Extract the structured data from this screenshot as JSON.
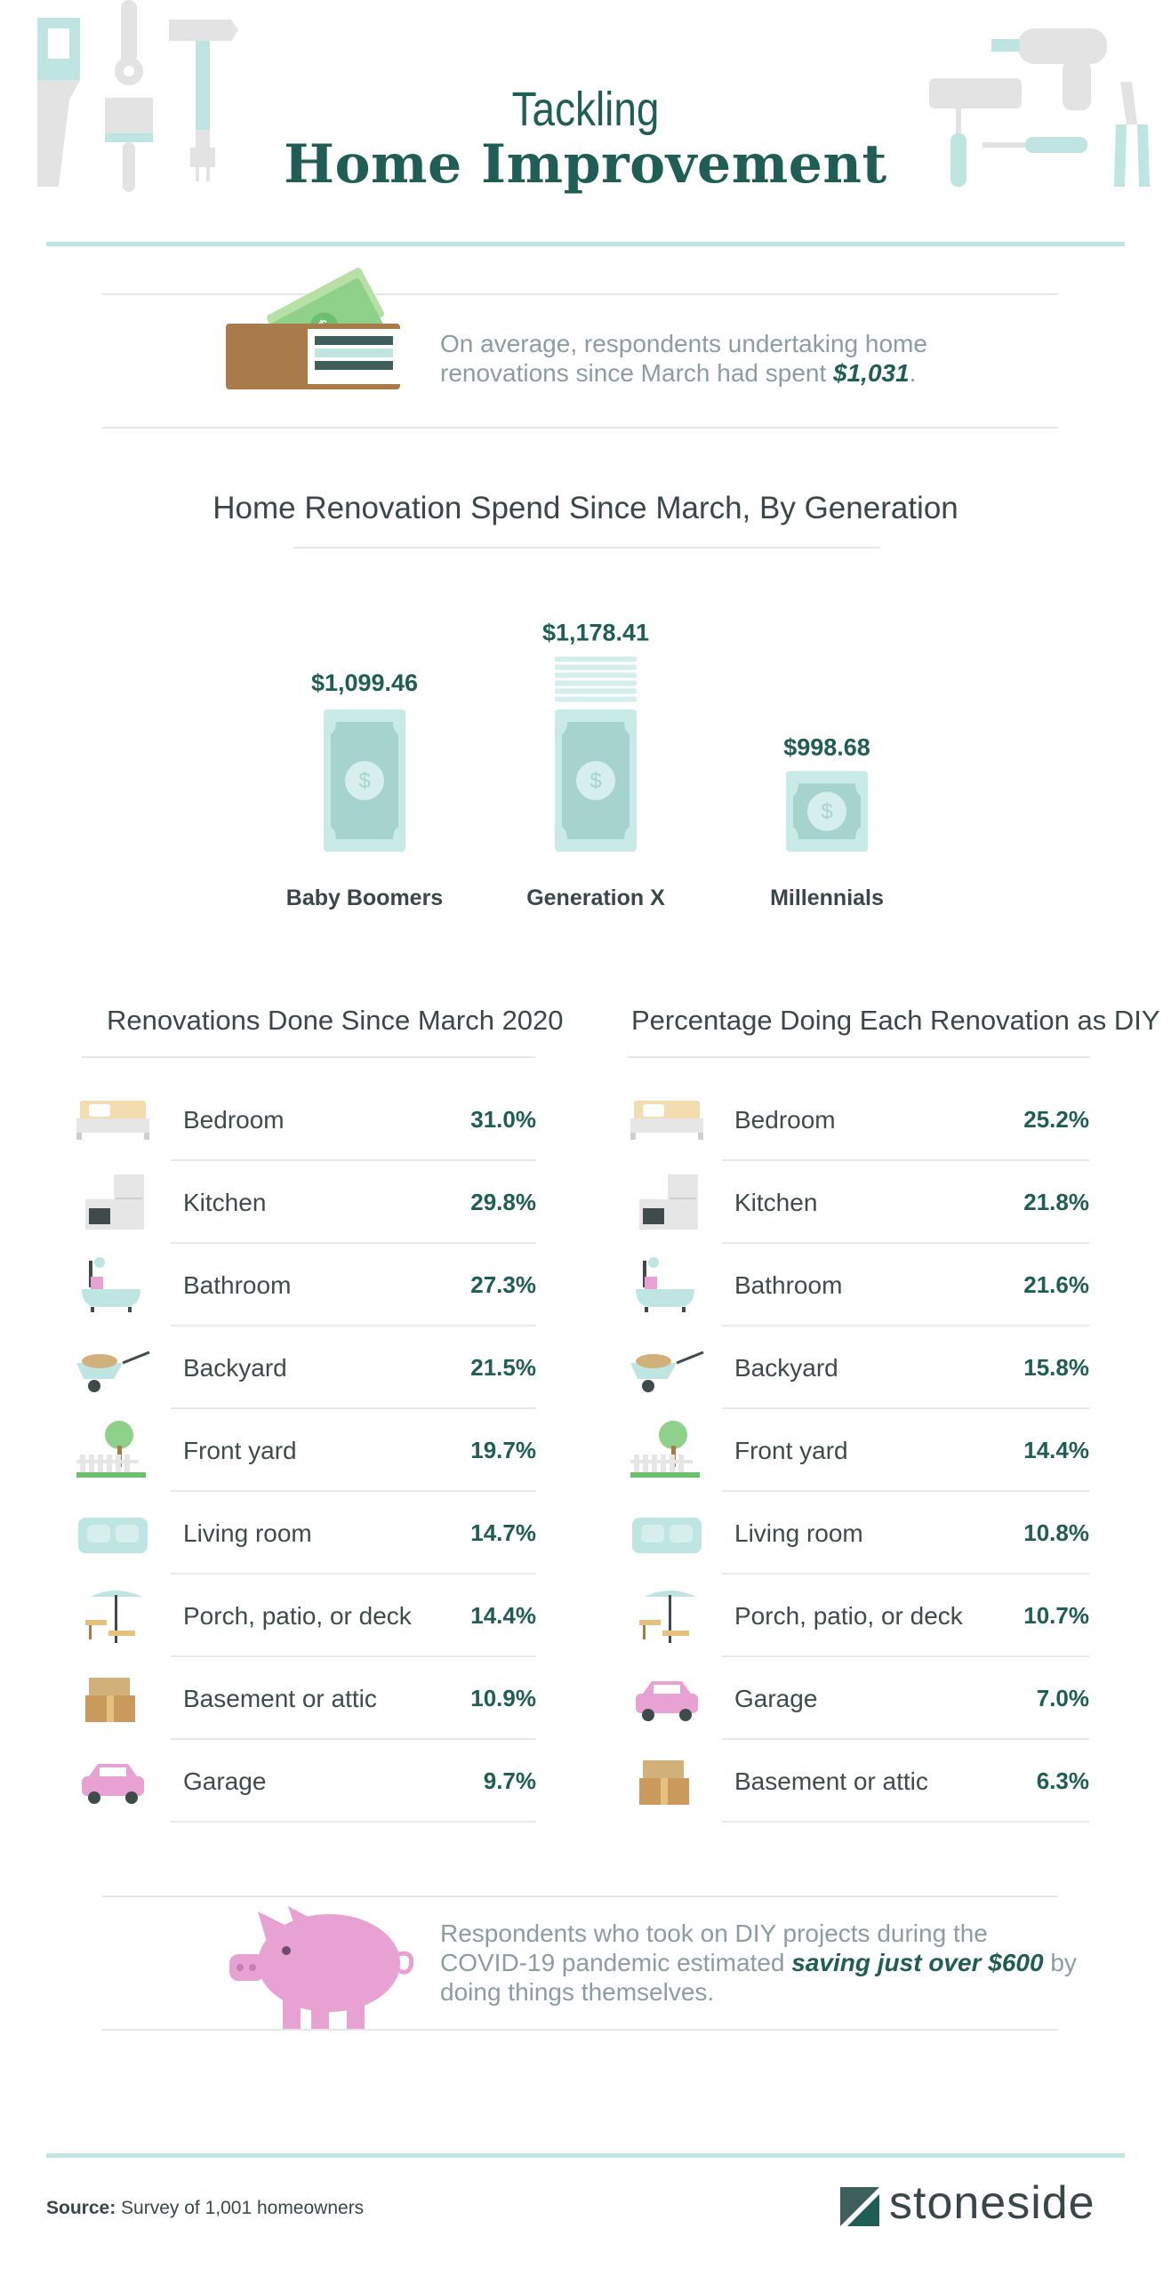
{
  "header": {
    "title_line1": "Tackling",
    "title_line2": "Home Improvement"
  },
  "spend_callout": {
    "text_before": "On average, respondents undertaking home renovations since March had spent ",
    "amount": "$1,031",
    "text_after": "."
  },
  "chart_data": [
    {
      "type": "bar",
      "title": "Home Renovation Spend Since March, By Generation",
      "categories": [
        "Baby Boomers",
        "Generation X",
        "Millennials"
      ],
      "values": [
        1099.46,
        1178.41,
        998.68
      ],
      "value_labels": [
        "$1,099.46",
        "$1,178.41",
        "$998.68"
      ]
    },
    {
      "type": "table",
      "title": "Renovations Done Since March 2020",
      "rows": [
        {
          "icon": "bed-icon",
          "label": "Bedroom",
          "value": "31.0%"
        },
        {
          "icon": "fridge-stove-icon",
          "label": "Kitchen",
          "value": "29.8%"
        },
        {
          "icon": "bathtub-icon",
          "label": "Bathroom",
          "value": "27.3%"
        },
        {
          "icon": "wheelbarrow-icon",
          "label": "Backyard",
          "value": "21.5%"
        },
        {
          "icon": "tree-fence-icon",
          "label": "Front yard",
          "value": "19.7%"
        },
        {
          "icon": "sofa-icon",
          "label": "Living room",
          "value": "14.7%"
        },
        {
          "icon": "patio-umbrella-icon",
          "label": "Porch, patio, or deck",
          "value": "14.4%"
        },
        {
          "icon": "boxes-icon",
          "label": "Basement or attic",
          "value": "10.9%"
        },
        {
          "icon": "car-icon",
          "label": "Garage",
          "value": "9.7%"
        }
      ]
    },
    {
      "type": "table",
      "title": "Percentage Doing Each Renovation as DIY",
      "rows": [
        {
          "icon": "bed-icon",
          "label": "Bedroom",
          "value": "25.2%"
        },
        {
          "icon": "fridge-stove-icon",
          "label": "Kitchen",
          "value": "21.8%"
        },
        {
          "icon": "bathtub-icon",
          "label": "Bathroom",
          "value": "21.6%"
        },
        {
          "icon": "wheelbarrow-icon",
          "label": "Backyard",
          "value": "15.8%"
        },
        {
          "icon": "tree-fence-icon",
          "label": "Front yard",
          "value": "14.4%"
        },
        {
          "icon": "sofa-icon",
          "label": "Living room",
          "value": "10.8%"
        },
        {
          "icon": "patio-umbrella-icon",
          "label": "Porch, patio, or deck",
          "value": "10.7%"
        },
        {
          "icon": "car-icon",
          "label": "Garage",
          "value": "7.0%"
        },
        {
          "icon": "boxes-icon",
          "label": "Basement or attic",
          "value": "6.3%"
        }
      ]
    }
  ],
  "savings_callout": {
    "text_before": "Respondents who took on DIY projects during the COVID-19 pandemic estimated ",
    "emphasis": "saving just over $600",
    "text_after": " by doing things themselves."
  },
  "footer": {
    "source_label": "Source:",
    "source_text": "Survey of 1,001 homeowners",
    "brand": "stoneside"
  },
  "colors": {
    "teal_dark": "#1f5d55",
    "mint": "#bfe5e2",
    "pink": "#e7a1d2",
    "gray_icon": "#e1e1e1"
  }
}
